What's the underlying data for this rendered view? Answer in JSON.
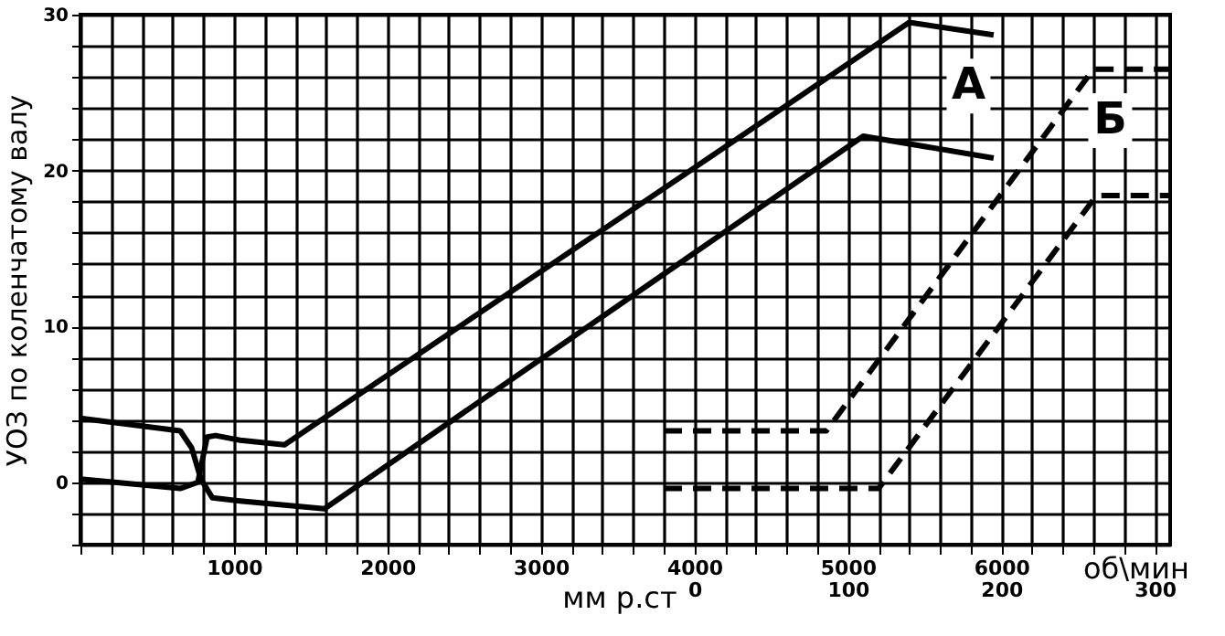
{
  "chart_data": {
    "type": "line",
    "ylabel": "УОЗ по коленчатому валу",
    "xlabel": "об\\мин",
    "x2label": "мм р.ст",
    "xlim": [
      0,
      7100
    ],
    "ylim": [
      -4,
      30
    ],
    "x2lim": [
      -400,
      310
    ],
    "xticks": [
      {
        "value": 0,
        "label": null
      },
      {
        "value": 200,
        "label": null
      },
      {
        "value": 400,
        "label": null
      },
      {
        "value": 600,
        "label": null
      },
      {
        "value": 800,
        "label": null
      },
      1000,
      {
        "value": 1200,
        "label": null
      },
      {
        "value": 1400,
        "label": null
      },
      {
        "value": 1600,
        "label": null
      },
      {
        "value": 1800,
        "label": null
      },
      2000,
      {
        "value": 2200,
        "label": null
      },
      {
        "value": 2400,
        "label": null
      },
      {
        "value": 2600,
        "label": null
      },
      {
        "value": 2800,
        "label": null
      },
      3000,
      {
        "value": 3200,
        "label": null
      },
      {
        "value": 3400,
        "label": null
      },
      {
        "value": 3600,
        "label": null
      },
      {
        "value": 3800,
        "label": null
      },
      4000,
      {
        "value": 4200,
        "label": null
      },
      {
        "value": 4400,
        "label": null
      },
      {
        "value": 4600,
        "label": null
      },
      {
        "value": 4800,
        "label": null
      },
      5000,
      {
        "value": 5200,
        "label": null
      },
      {
        "value": 5400,
        "label": null
      },
      {
        "value": 5600,
        "label": null
      },
      {
        "value": 5800,
        "label": null
      },
      6000,
      {
        "value": 6200,
        "label": null
      },
      {
        "value": 6400,
        "label": null
      },
      {
        "value": 6600,
        "label": null
      },
      {
        "value": 6800,
        "label": null
      },
      {
        "value": 7000,
        "label": null
      }
    ],
    "yticks": [
      {
        "value": -4,
        "label": null
      },
      {
        "value": -2,
        "label": null
      },
      0,
      {
        "value": 2,
        "label": null
      },
      {
        "value": 4,
        "label": null
      },
      {
        "value": 6,
        "label": null
      },
      {
        "value": 8,
        "label": null
      },
      10,
      {
        "value": 12,
        "label": null
      },
      {
        "value": 14,
        "label": null
      },
      {
        "value": 16,
        "label": null
      },
      {
        "value": 18,
        "label": null
      },
      20,
      {
        "value": 22,
        "label": null
      },
      {
        "value": 24,
        "label": null
      },
      {
        "value": 26,
        "label": null
      },
      {
        "value": 28,
        "label": null
      },
      30
    ],
    "x2ticks": [
      0,
      100,
      200,
      300
    ],
    "grid": true,
    "series": [
      {
        "color": "#000000",
        "line_style": "solid",
        "x": [
          0,
          650,
          725,
          785,
          860,
          1040,
          1590,
          5100,
          5950
        ],
        "values": [
          4.1,
          3.3,
          2.2,
          0.2,
          -1.0,
          -1.2,
          -1.7,
          22.2,
          20.8
        ]
      },
      {
        "color": "#000000",
        "line_style": "solid",
        "x": [
          0,
          650,
          765,
          825,
          880,
          1040,
          1330,
          5400,
          5950
        ],
        "values": [
          0.2,
          -0.4,
          0,
          2.9,
          3.0,
          2.7,
          2.4,
          29.5,
          28.7
        ]
      },
      {
        "color": "#000000",
        "line_style": "dashed",
        "x": [
          3800,
          4860,
          6600,
          7100
        ],
        "values": [
          3.3,
          3.3,
          26.5,
          26.5
        ]
      },
      {
        "color": "#000000",
        "line_style": "dashed",
        "x": [
          3800,
          5200,
          6620,
          7100
        ],
        "values": [
          -0.4,
          -0.4,
          18.4,
          18.4
        ]
      }
    ],
    "annotations": [
      "А",
      "Б"
    ]
  }
}
